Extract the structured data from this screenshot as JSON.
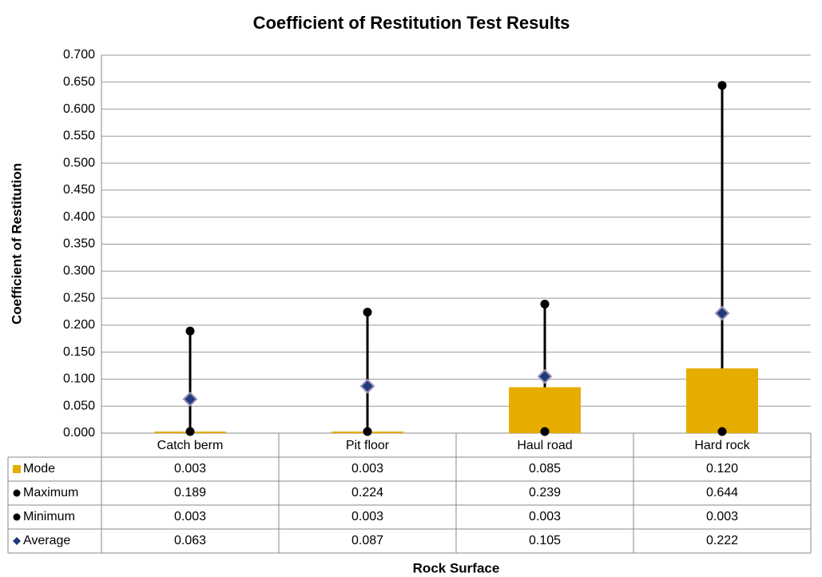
{
  "chart_data": {
    "type": "bar",
    "title": "Coefficient of Restitution Test Results",
    "x_label": "Rock Surface",
    "y_label": "Coefficient of Restitution",
    "categories": [
      "Catch berm",
      "Pit floor",
      "Haul road",
      "Hard rock"
    ],
    "series": [
      {
        "name": "Mode",
        "type": "bar",
        "color": "#e5ad00",
        "values": [
          0.003,
          0.003,
          0.085,
          0.12
        ],
        "value_labels": [
          "0.003",
          "0.003",
          "0.085",
          "0.120"
        ]
      },
      {
        "name": "Maximum",
        "type": "dot",
        "color": "#000000",
        "values": [
          0.189,
          0.224,
          0.239,
          0.644
        ],
        "value_labels": [
          "0.189",
          "0.224",
          "0.239",
          "0.644"
        ]
      },
      {
        "name": "Minimum",
        "type": "dot",
        "color": "#000000",
        "values": [
          0.003,
          0.003,
          0.003,
          0.003
        ],
        "value_labels": [
          "0.003",
          "0.003",
          "0.003",
          "0.003"
        ]
      },
      {
        "name": "Average",
        "type": "diamond",
        "color": "#1f3a7a",
        "values": [
          0.063,
          0.087,
          0.105,
          0.222
        ],
        "value_labels": [
          "0.063",
          "0.087",
          "0.105",
          "0.222"
        ]
      }
    ],
    "ylim": [
      0,
      0.7
    ],
    "yticks": [
      {
        "value": 0,
        "label": "0.000"
      },
      {
        "value": 0.05,
        "label": "0.050"
      },
      {
        "value": 0.1,
        "label": "0.100"
      },
      {
        "value": 0.15,
        "label": "0.150"
      },
      {
        "value": 0.2,
        "label": "0.200"
      },
      {
        "value": 0.25,
        "label": "0.250"
      },
      {
        "value": 0.3,
        "label": "0.300"
      },
      {
        "value": 0.35,
        "label": "0.350"
      },
      {
        "value": 0.4,
        "label": "0.400"
      },
      {
        "value": 0.45,
        "label": "0.450"
      },
      {
        "value": 0.5,
        "label": "0.500"
      },
      {
        "value": 0.55,
        "label": "0.550"
      },
      {
        "value": 0.6,
        "label": "0.600"
      },
      {
        "value": 0.65,
        "label": "0.650"
      },
      {
        "value": 0.7,
        "label": "0.700"
      }
    ],
    "grid": true
  }
}
